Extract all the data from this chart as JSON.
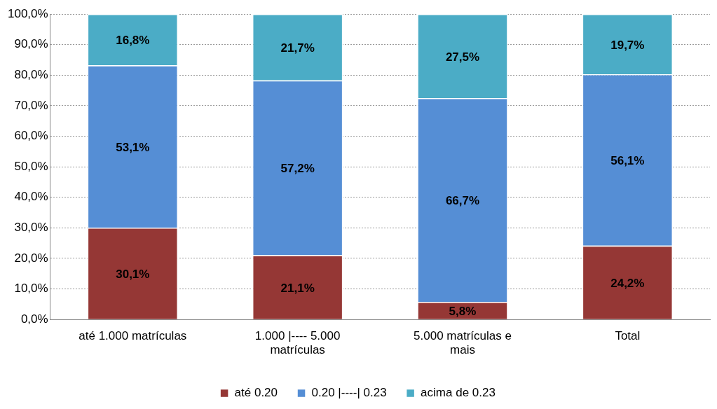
{
  "chart_data": {
    "type": "bar",
    "stacked": true,
    "categories": [
      "até 1.000 matrículas",
      "1.000 |---- 5.000 matrículas",
      "5.000 matrículas e mais",
      "Total"
    ],
    "series": [
      {
        "name": "até 0.20",
        "color": "#953735",
        "values": [
          30.1,
          21.1,
          5.8,
          24.2
        ],
        "value_labels": [
          "30,1%",
          "21,1%",
          "5,8%",
          "24,2%"
        ]
      },
      {
        "name": "0.20 |----| 0.23",
        "color": "#558ed5",
        "values": [
          53.1,
          57.2,
          66.7,
          56.1
        ],
        "value_labels": [
          "53,1%",
          "57,2%",
          "66,7%",
          "56,1%"
        ]
      },
      {
        "name": "acima de 0.23",
        "color": "#4bacc6",
        "values": [
          16.8,
          21.7,
          27.5,
          19.7
        ],
        "value_labels": [
          "16,8%",
          "21,7%",
          "27,5%",
          "19,7%"
        ]
      }
    ],
    "ylim": [
      0,
      100
    ],
    "yticks": [
      {
        "value": 0,
        "label": "0,0%"
      },
      {
        "value": 10,
        "label": "10,0%"
      },
      {
        "value": 20,
        "label": "20,0%"
      },
      {
        "value": 30,
        "label": "30,0%"
      },
      {
        "value": 40,
        "label": "40,0%"
      },
      {
        "value": 50,
        "label": "50,0%"
      },
      {
        "value": 60,
        "label": "60,0%"
      },
      {
        "value": 70,
        "label": "70,0%"
      },
      {
        "value": 80,
        "label": "80,0%"
      },
      {
        "value": 90,
        "label": "90,0%"
      },
      {
        "value": 100,
        "label": "100,0%"
      }
    ],
    "grid": "y",
    "legend": "bottom"
  }
}
